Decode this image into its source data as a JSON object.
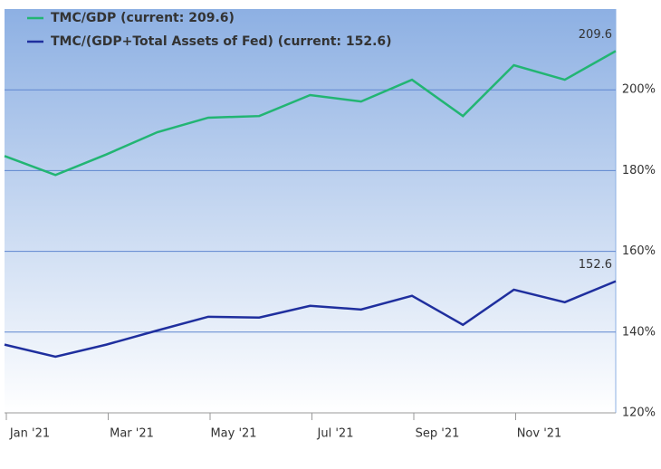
{
  "chart_data": {
    "type": "line",
    "categories": [
      "Jan '21",
      null,
      "Mar '21",
      null,
      "May '21",
      null,
      "Jul '21",
      null,
      "Sep '21",
      null,
      "Nov '21",
      null,
      null
    ],
    "series": [
      {
        "name": "TMC/GDP (current: 209.6)",
        "color": "#22b573",
        "values": [
          183.6,
          178.9,
          184.0,
          189.5,
          193.1,
          193.5,
          198.7,
          197.1,
          202.5,
          193.5,
          206.1,
          202.5,
          209.6
        ]
      },
      {
        "name": "TMC/(GDP+Total Assets of Fed) (current: 152.6)",
        "color": "#1f2f9e",
        "values": [
          136.9,
          133.9,
          136.9,
          140.4,
          143.8,
          143.6,
          146.5,
          145.6,
          149.0,
          141.8,
          150.5,
          147.4,
          152.6
        ]
      }
    ],
    "ylim": [
      120,
      220
    ],
    "yticks": [
      {
        "value": 120,
        "label": "120%"
      },
      {
        "value": 140,
        "label": "140%"
      },
      {
        "value": 160,
        "label": "160%"
      },
      {
        "value": 180,
        "label": "180%"
      },
      {
        "value": 200,
        "label": "200%"
      }
    ],
    "grid": true
  }
}
